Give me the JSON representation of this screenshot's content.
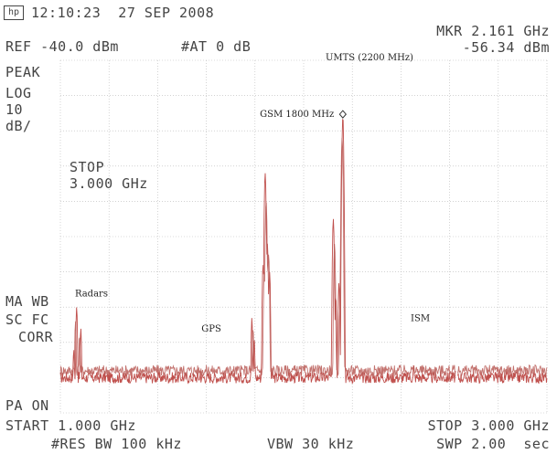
{
  "header": {
    "logo_text": "hp",
    "timestamp": "12:10:23  27 SEP 2008",
    "ref_level": "REF -40.0 dBm",
    "attenuation": "#AT 0 dB",
    "marker_freq": "MKR 2.161 GHz",
    "marker_level": "-56.34 dBm"
  },
  "left_panel": {
    "detector": "PEAK",
    "scale_type": "LOG",
    "scale_value": "10",
    "scale_unit": "dB/",
    "stop_label": "STOP",
    "stop_value": "3.000 GHz",
    "ma_wb": "MA WB",
    "sc_fc": "SC FC",
    "corr": "CORR",
    "pa_on": "PA ON"
  },
  "footer": {
    "start": "START 1.000 GHz",
    "stop": "STOP 3.000 GHz",
    "res_bw": "#RES BW 100 kHz",
    "vbw": "VBW 30 kHz",
    "sweep": "SWP 2.00  sec"
  },
  "colors": {
    "trace": "#c0504d",
    "trace_secondary": "#b85a56",
    "graticule": "#999999",
    "text": "#444444"
  },
  "chart_data": {
    "type": "line",
    "x_unit": "GHz",
    "xlim": [
      1.0,
      3.0
    ],
    "y_unit": "dBm",
    "ylim": [
      -140.0,
      -40.0
    ],
    "grid": true,
    "annotations": [
      {
        "text": "Radars",
        "x": 1.06,
        "y": -107
      },
      {
        "text": "GPS",
        "x": 1.58,
        "y": -117
      },
      {
        "text": "GSM 1800 MHz",
        "x": 1.82,
        "y": -56
      },
      {
        "text": "UMTS (2200 MHz)",
        "x": 2.09,
        "y": -40
      },
      {
        "text": "ISM",
        "x": 2.44,
        "y": -114
      }
    ],
    "marker": {
      "x": 2.161,
      "y": -56.34
    },
    "noise_floor": -130,
    "series": [
      {
        "peaks": [
          {
            "x": 1.067,
            "y": -110
          },
          {
            "x": 1.084,
            "y": -116
          },
          {
            "x": 1.055,
            "y": -122
          },
          {
            "x": 1.575,
            "y": -128
          },
          {
            "x": 1.787,
            "y": -113
          },
          {
            "x": 1.797,
            "y": -119
          },
          {
            "x": 1.842,
            "y": -72
          },
          {
            "x": 1.851,
            "y": -92
          },
          {
            "x": 1.833,
            "y": -98
          },
          {
            "x": 1.86,
            "y": -100
          },
          {
            "x": 2.122,
            "y": -85
          },
          {
            "x": 2.132,
            "y": -107
          },
          {
            "x": 2.145,
            "y": -103
          },
          {
            "x": 2.161,
            "y": -56
          },
          {
            "x": 2.452,
            "y": -126
          }
        ]
      },
      {
        "peaks": [
          {
            "x": 1.062,
            "y": -114
          },
          {
            "x": 1.079,
            "y": -118
          },
          {
            "x": 1.792,
            "y": -116
          },
          {
            "x": 1.846,
            "y": -80
          },
          {
            "x": 1.838,
            "y": -100
          },
          {
            "x": 1.856,
            "y": -95
          },
          {
            "x": 2.127,
            "y": -92
          },
          {
            "x": 2.158,
            "y": -62
          },
          {
            "x": 2.149,
            "y": -110
          }
        ]
      }
    ]
  }
}
